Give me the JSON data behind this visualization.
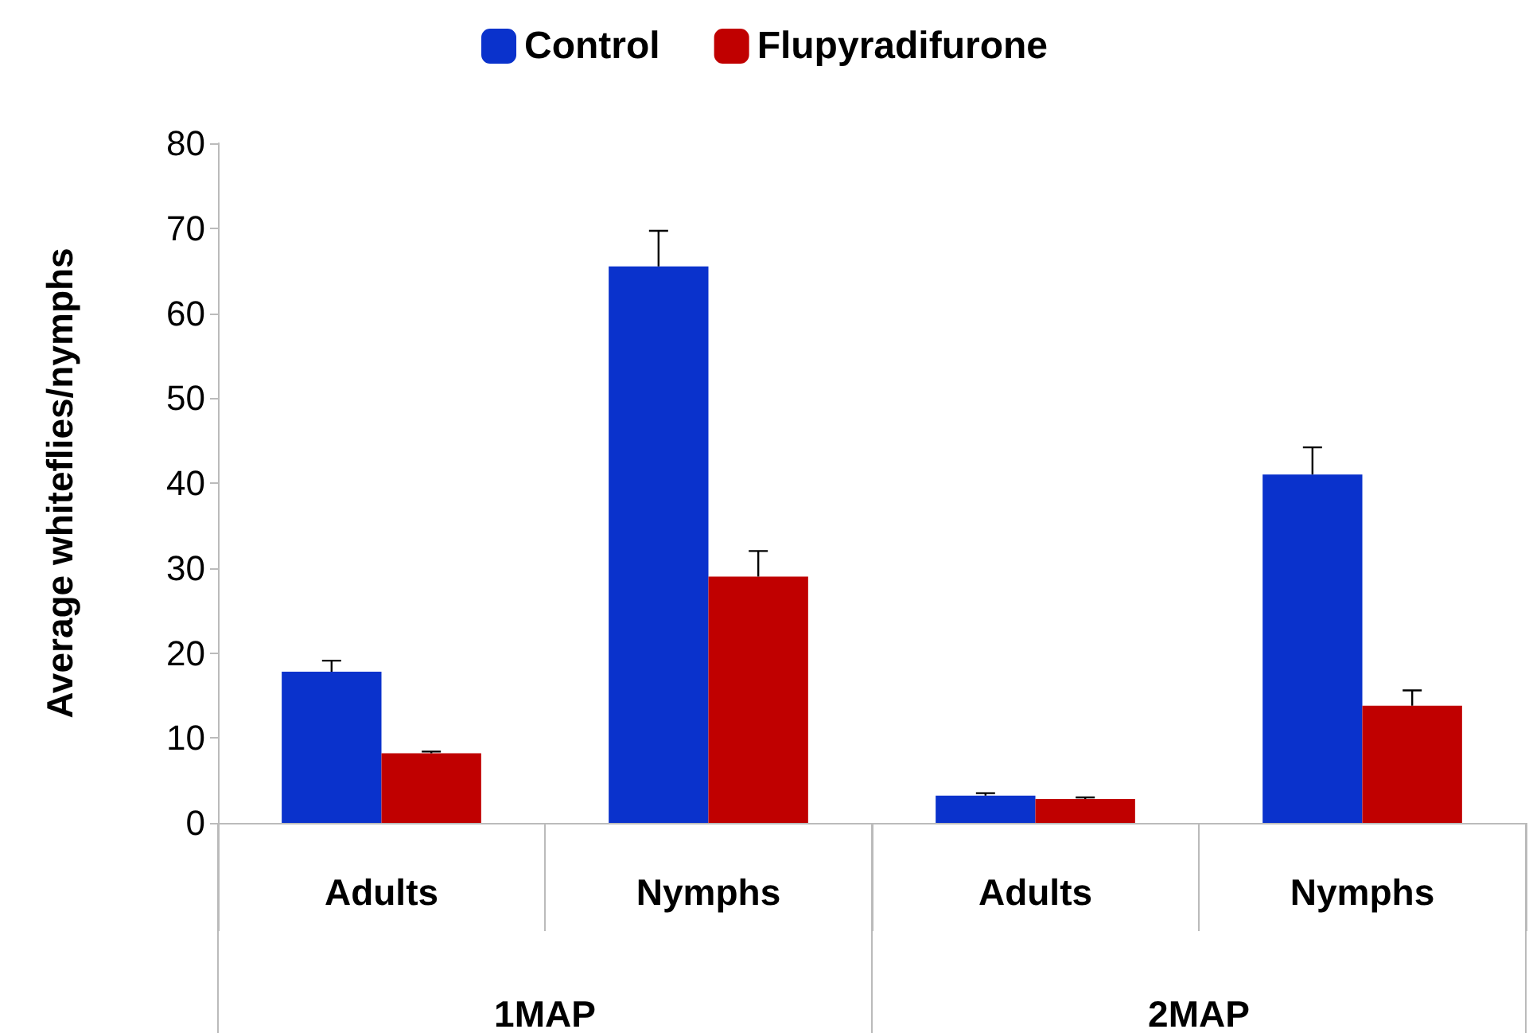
{
  "chart_data": {
    "type": "bar",
    "ylabel": "Average whiteflies/nymphs",
    "categories": [
      "Adults",
      "Nymphs",
      "Adults",
      "Nymphs"
    ],
    "series": [
      {
        "name": "Control",
        "color": "#0a32cc",
        "values": [
          17.8,
          65.5,
          3.2,
          41
        ],
        "errors": [
          1.3,
          4.2,
          0.3,
          3.2
        ]
      },
      {
        "name": "Flupyradifurone",
        "color": "#c00000",
        "values": [
          8.2,
          29,
          2.8,
          13.8
        ],
        "errors": [
          0.2,
          3,
          0.2,
          1.8
        ]
      }
    ],
    "annotations": [
      "1MAP",
      "2MAP"
    ],
    "ylim": [
      0,
      80
    ],
    "yticks": [
      0,
      10,
      20,
      30,
      40,
      50,
      60,
      70,
      80
    ],
    "grid": false,
    "legend": "top"
  }
}
